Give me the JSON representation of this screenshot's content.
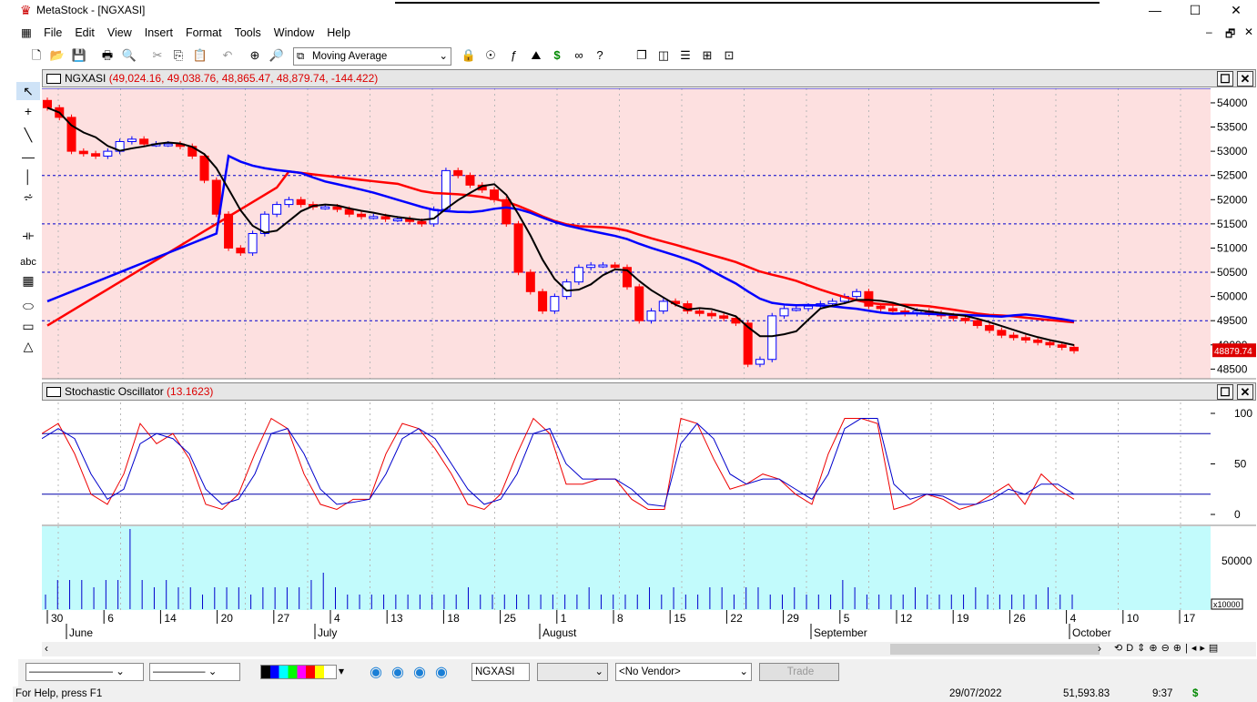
{
  "window": {
    "app_title": "MetaStock - [NGXASI]",
    "minimize": "—",
    "maximize": "☐",
    "close": "✕"
  },
  "menu": [
    "File",
    "Edit",
    "View",
    "Insert",
    "Format",
    "Tools",
    "Window",
    "Help"
  ],
  "toolbar": {
    "indicator_select": "Moving Average"
  },
  "price_pane": {
    "symbol": "NGXASI",
    "values": "(49,024.16, 49,038.76, 48,865.47, 48,879.74, -144.422)",
    "last_price_tag": "48879.74",
    "y_ticks": [
      "54000",
      "53500",
      "53000",
      "52500",
      "52000",
      "51500",
      "51000",
      "50500",
      "50000",
      "49500",
      "49000",
      "48500"
    ],
    "colors": {
      "bg": "#fde0e0",
      "up": "#0000ff",
      "down": "#ff0000",
      "ma_short": "#000000",
      "ma_mid": "#0000ff",
      "ma_long": "#ff0000",
      "gridline": "#0000cc"
    }
  },
  "stoch_pane": {
    "name": "Stochastic Oscillator",
    "value": "(13.1623)",
    "y_ticks": [
      "100",
      "50",
      "0"
    ]
  },
  "volume_pane": {
    "y_ticks": [
      "50000"
    ],
    "scale_label": "x10000"
  },
  "date_axis": {
    "days": [
      "30",
      "6",
      "14",
      "20",
      "27",
      "4",
      "13",
      "18",
      "25",
      "1",
      "8",
      "15",
      "22",
      "29",
      "5",
      "12",
      "19",
      "26",
      "4",
      "10",
      "17"
    ],
    "months": [
      "June",
      "July",
      "August",
      "September",
      "October"
    ]
  },
  "bottom_bar": {
    "symbol_field": "NGXASI",
    "vendor": "<No Vendor>",
    "trade_button": "Trade"
  },
  "status_bar": {
    "help": "For Help, press F1",
    "date": "29/07/2022",
    "price": "51,593.83",
    "time": "9:37",
    "dollar": "$"
  },
  "chart_data": {
    "type": "candlestick",
    "y_range": [
      48300,
      54300
    ],
    "closes": [
      53900,
      53700,
      53000,
      52950,
      52900,
      53000,
      53200,
      53250,
      53150,
      53150,
      53150,
      53100,
      52900,
      52400,
      51700,
      51000,
      50900,
      51300,
      51700,
      51900,
      52000,
      51900,
      51850,
      51850,
      51800,
      51700,
      51650,
      51650,
      51600,
      51600,
      51550,
      51500,
      51800,
      52600,
      52500,
      52300,
      52200,
      52000,
      51500,
      50500,
      50100,
      49700,
      50000,
      50300,
      50600,
      50650,
      50650,
      50600,
      50200,
      49500,
      49700,
      49900,
      49850,
      49700,
      49650,
      49600,
      49550,
      49450,
      48600,
      48700,
      49600,
      49750,
      49750,
      49800,
      49850,
      49900,
      50000,
      50100,
      49800,
      49750,
      49700,
      49650,
      49700,
      49650,
      49600,
      49550,
      49500,
      49400,
      49300,
      49200,
      49150,
      49100,
      49050,
      49000,
      48950,
      48879
    ],
    "stochastic_k": [
      80,
      90,
      60,
      20,
      10,
      40,
      90,
      70,
      80,
      55,
      10,
      5,
      20,
      60,
      95,
      85,
      40,
      10,
      5,
      15,
      15,
      60,
      90,
      85,
      65,
      40,
      10,
      5,
      20,
      60,
      95,
      80,
      30,
      30,
      35,
      35,
      15,
      5,
      5,
      95,
      90,
      55,
      25,
      30,
      40,
      35,
      20,
      10,
      60,
      95,
      95,
      90,
      5,
      10,
      20,
      15,
      5,
      10,
      20,
      30,
      10,
      40,
      25,
      15
    ],
    "stochastic_d": [
      75,
      85,
      75,
      40,
      15,
      25,
      70,
      80,
      75,
      60,
      25,
      10,
      15,
      40,
      80,
      85,
      60,
      25,
      10,
      12,
      15,
      40,
      75,
      85,
      75,
      50,
      25,
      10,
      15,
      40,
      80,
      85,
      50,
      35,
      35,
      35,
      25,
      10,
      8,
      70,
      90,
      75,
      40,
      30,
      35,
      35,
      25,
      15,
      40,
      85,
      95,
      95,
      30,
      15,
      20,
      18,
      10,
      10,
      15,
      25,
      20,
      30,
      30,
      20
    ]
  }
}
